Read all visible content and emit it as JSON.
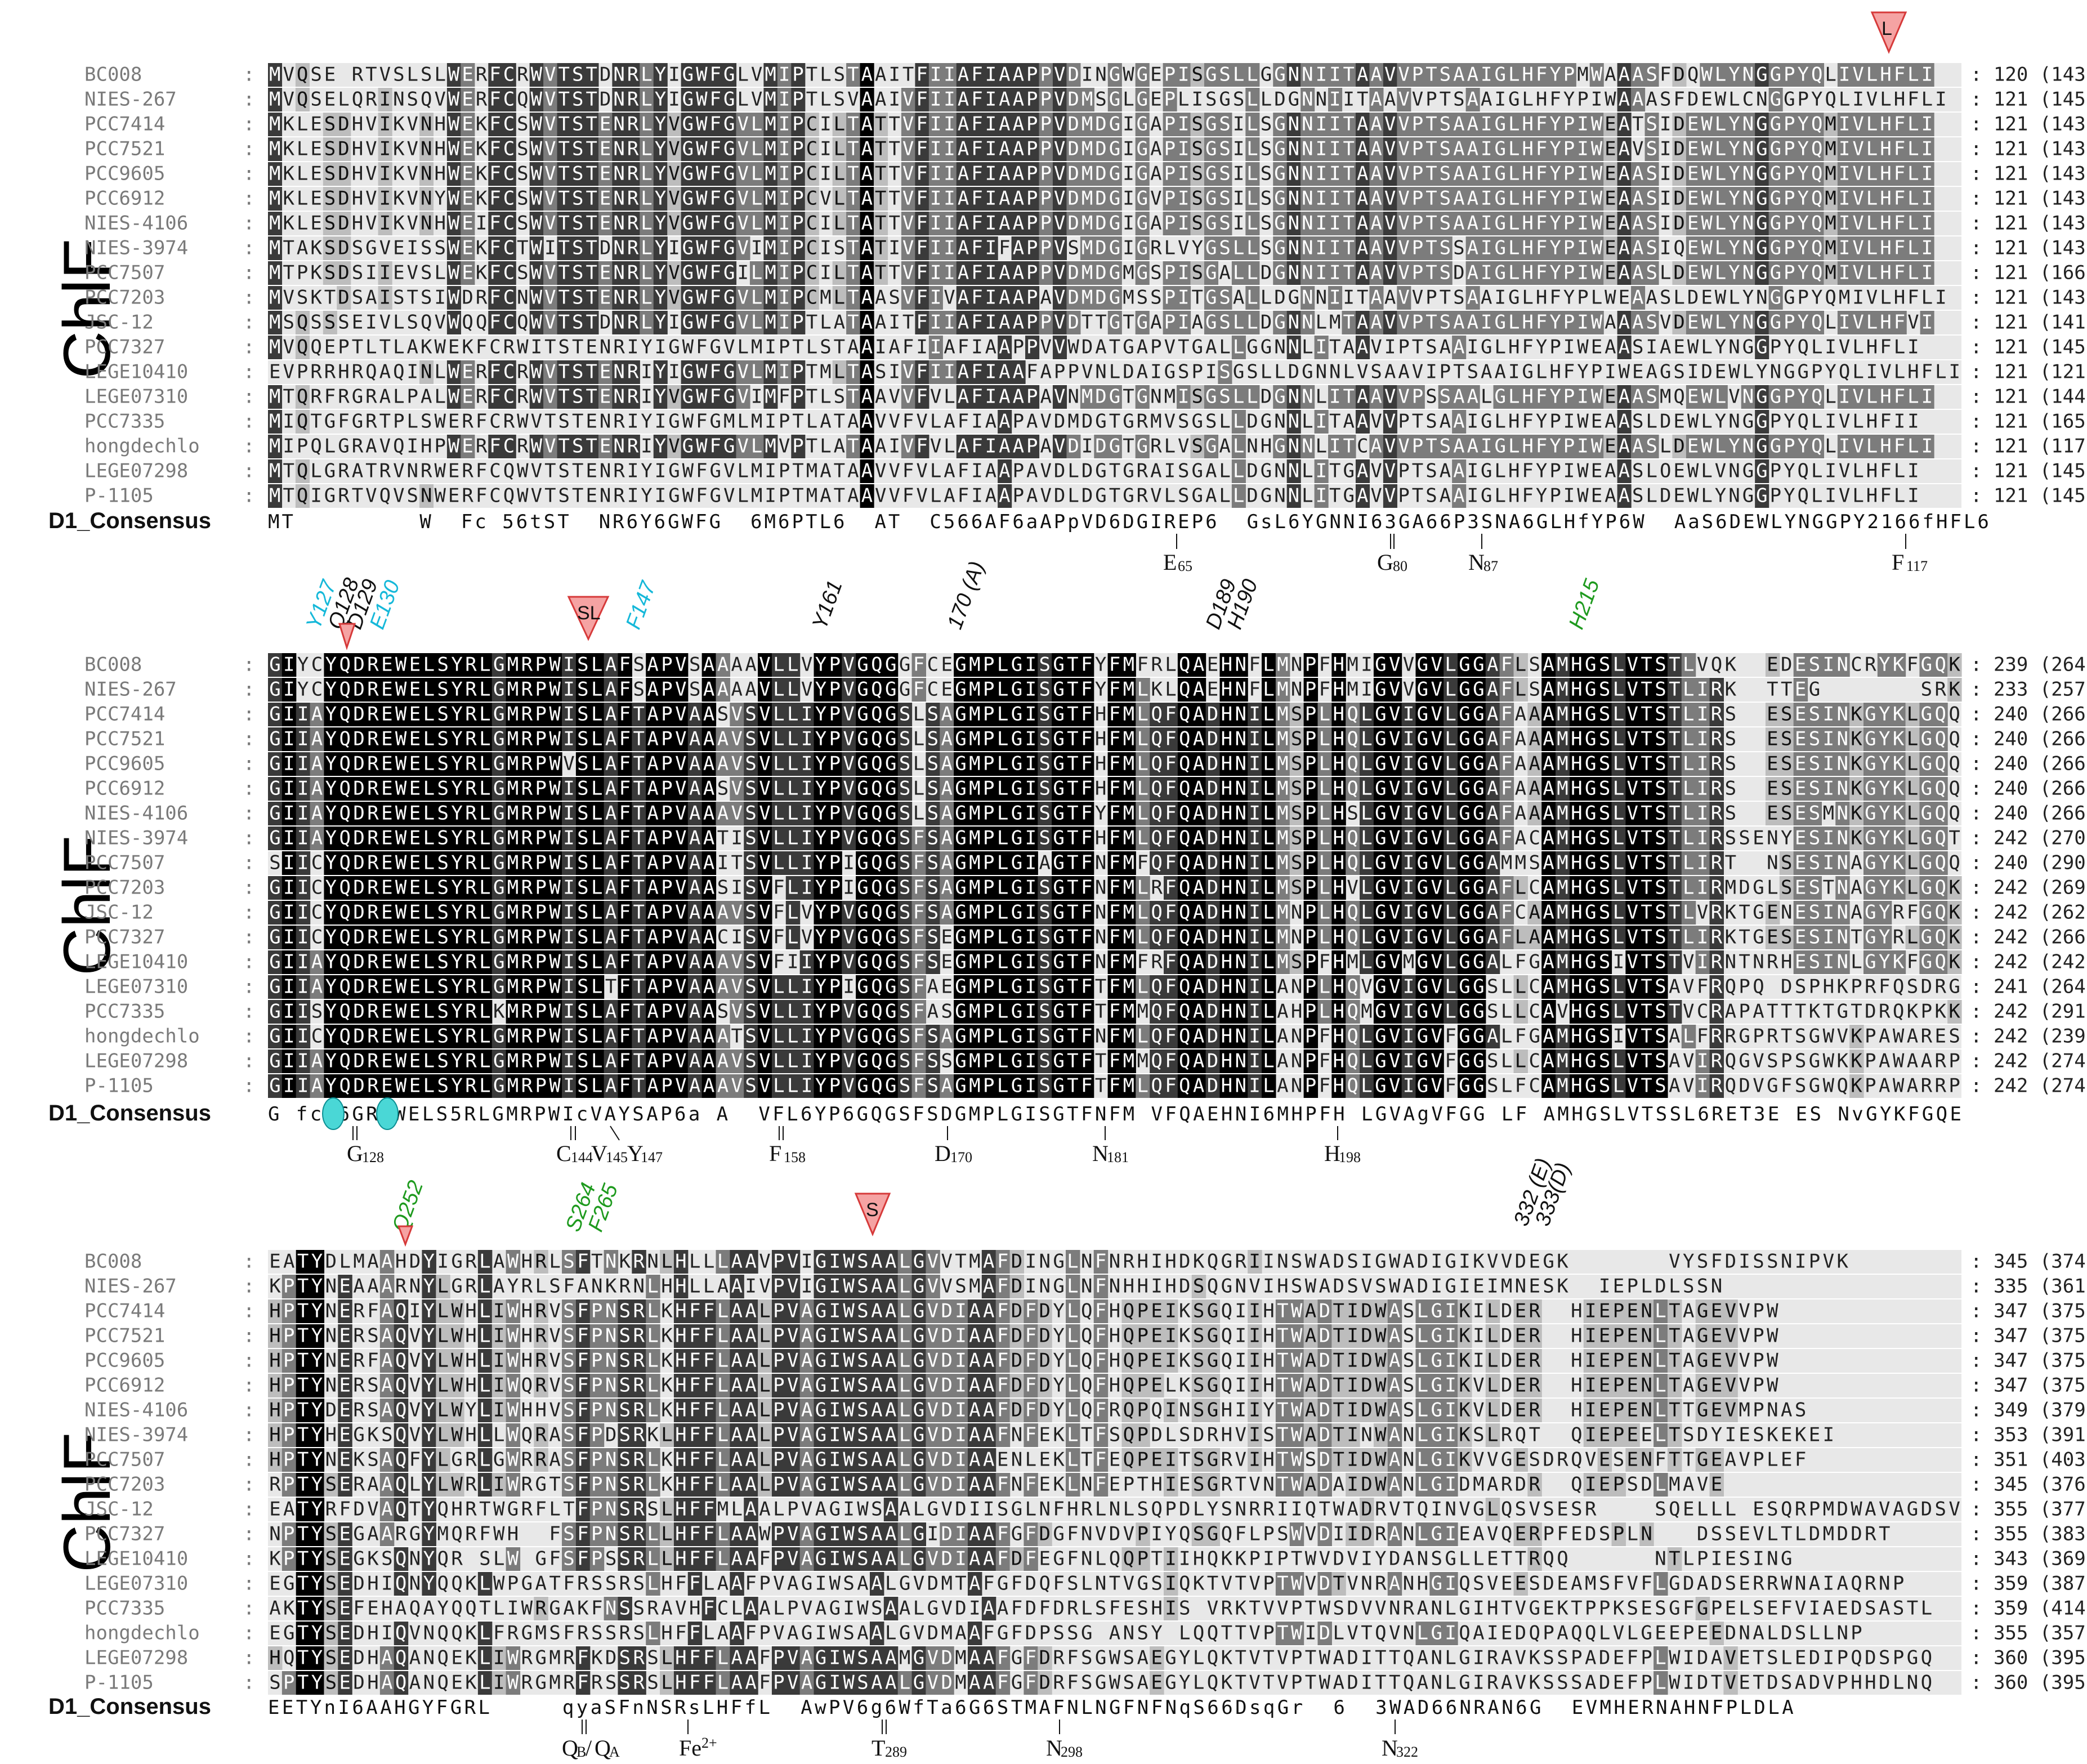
{
  "colors": {
    "black": "#000000",
    "dark": "#3a3a3a",
    "mid": "#7c7c7c",
    "light": "#bdbdbd",
    "pale": "#e8e8e8",
    "cyan_text": "#15b8d9",
    "green_text": "#1e9a1e",
    "triangle_fill": "#f5a3a3",
    "triangle_stroke": "#d63a3a",
    "ellipse_fill": "#4ad7d6"
  },
  "protein_label": "ChlF",
  "consensus_label": "D1_Consensus",
  "species": [
    "BC008",
    "NIES-267",
    "PCC7414",
    "PCC7521",
    "PCC9605",
    "PCC6912",
    "NIES-4106",
    "NIES-3974",
    "PCC7507",
    "PCC7203",
    "JSC-12",
    "PCC7327",
    "LEGE10410",
    "LEGE07310",
    "PCC7335",
    "hongdechlo",
    "LEGE07298",
    "P-1105"
  ],
  "blocks": [
    {
      "name": "block-1",
      "sequences": [
        "MVQSE-RTVSLSLWERFCRWVTSTDNRLYIGWFGLVMIPTLSTAAITFIIAFIAAPPVDINGWGEPISGSLLGGNNIITAAVVPTSAAIGLHFYPMWAAASFDQWLYNGGPYQLIVLHFLI",
        "MVQSELQRINSQVWERFCQWVTSTDNRLYIGWFGLVMIPTLSVAAIVFIIAFIAAPPVDMSGLGEPLISGSLLDGNNIITAAVVPTSAAIGLHFYPIWAAASFDEWLCNGGPYQLIVLHFLI",
        "MKLESDHVIKVNHWEKFCSWVTSTENRLYVGWFGVLMIPCILTATTVFIIAFIAAPPVDMDGIGAPISGSILSGNNIITAAVVPTSAAIGLHFYPIWEATSIDEWLYNGGPYQMIVLHFLI",
        "MKLESDHVIKVNHWEKFCSWVTSTENRLYVGWFGVLMIPCILTATTVFIIAFIAAPPVDMDGIGAPISGSILSGNNIITAAVVPTSAAIGLHFYPIWEAVSIDEWLYNGGPYQMIVLHFLI",
        "MKLESDHVIKVNHWEKFCSWVTSTENRLYVGWFGVLMIPCILTATTVFIIAFIAAPPVDMDGIGAPISGSILSGNNIITAAVVPTSAAIGLHFYPIWEAASIDEWLYNGGPYQMIVLHFLI",
        "MKLESDHVIKVNYWEKFCSWVTSTENRLYVGWFGVLMIPCVLTATTVFIIAFIAAPPVDMDGIGVPISGSILSGNNIITAAVVPTSAAIGLHFYPIWEAASIDEWLYNGGPYQMIVLHFLI",
        "MKLESDHVIKVNHWEIFCSWVTSTENRLYVGWFGVLMIPCILTATTVFIIAFIAAPPVDMDGIGAPISGSILSGNNIITAAVVPTSAAIGLHFYPIWEAASIDEWLYNGGPYQMIVLHFLI",
        "MTAKSDSGVEISSWEKFCTWITSTDNRLYIGWFGVIMIPCISTATIVFIIAFIFAPPVSMDGIGRLVYGSLLSGNNIITAAVVPTSSAIGLHFYPIWEAASIQEWLYNGGPYQMIVLHFLI",
        "MTPKSDSIIEVSLWEKFCSWVTSTENRLYVGWFGILMIPCILTATTVFIIAFIAAPPVDMDGMGSPISGALLDGNNIITAAVVPTSDAIGLHFYPIWEAASLDEWLYNGGPYQMIVLHFLI",
        "MVSKTDSAISTSIWDRFCNWVTSTENRLYVGWFGVLMIPCMLTAASVFIVAFIAAPAVDMDGMSSPITGSALLDGNNIITAAVVPTSAAIGLHFYPLWEAASLDEWLYNGGPYQMIVLHFLI",
        "MSQSSSEIVLSQVWQQFCQWVTSTDNRLYIGWFGVLMIPTLATAAITFIIAFIAAPPVDTTGTGAPIAGSLLDGNNLMTAAVVPTSAAIGLHFYPIWAAASVDEWLYNGGPYQLIVLHFVI",
        "MVQQEPTLTLAKWEKFCRWITSTENRIYIGWFGVLMIPTLSTAAIAFIIAFIAAPPVVWDATGAPVTGALLGGNNLITAAVIPTSAAIGLHFYPIWEAASIAEWLYNGGPYQLIVLHFLI",
        "EVPRRHRQAQINLWERFCRWVTSTENRIYIGWFGVLMIPTMLTASIVFIIAFIAAFAPPVNLDAIGSPISGSLLDGNNLVSAAVIPTSAAIGLHFYPIWEAGSIDEWLYNGGPYQLIVLHFLI",
        "MTQRFRGRALPALWERFCRWVTSTENRIYVGWFGVIMFPTLSTAAVVFVLAFIAAPAVNMDGTGNMISGSLLDGNNLITAAVVPSSAALGLHFYPIWEAASMQEWLVNGGPYQLIVLHFLI",
        "MIQTGFGRTPLSWERFCRWVTSTENRIYIGWFGMLMIPTLATAAVVFVLAFIAAPAVDMDGTGRMVSGSLLDGNNLITAAVVPTSAAIGLHFYPIWEAASLDEWLYNGGPYQLIVLHFII",
        "MIPQLGRAVQIHPWERFCRWVTSTENRIYVGWFGVLMVPTLATAAIVFVLAFIAAPAVDIDGTGRLVSGALNHGNNLITCAVVPTSAAIGLHFYPIWEAASLDEWLYNGGPYQLIVLHFLI",
        "MTQLGRATRVNRWERFCQWVTSTENRIYIGWFGVLMIPTMATAAVVFVLAFIAAPAVDLDGTGRAISGALLDGNNLITGAVVPTSAAIGLHFYPIWEAASLOEWLVNGGPYQLIVLHFLI",
        "MTQIGRTVQVSNWERFCQWVTSTENRIYIGWFGVLMIPTMATAAVVFVLAFIAAPAVDLDGTGRVLSGALLDGNNLITGAVVPTSAAIGLHFYPIWEAASLDEWLYNGGPYQLIVLHFLI"
      ],
      "counts": [
        "120 (143)",
        "121 (145)",
        "121 (143)",
        "121 (143)",
        "121 (143)",
        "121 (143)",
        "121 (143)",
        "121 (143)",
        "121 (166)",
        "121 (143)",
        "121 (141)",
        "121 (145)",
        "121 (121)",
        "121 (144)",
        "121 (165)",
        "121 (117)",
        "121 (145)",
        "121 (145)"
      ],
      "consensus": "MT         W  Fc 56tST  NR6Y6GWFG  6M6PTL6  AT  C566AF6aAPpVD6DGIREP6  GsL6YGNNI63GA66P3SNA6GLHfYP6W  AaS6DEWLYNGGPY2166fHFL6",
      "top_annotations": [
        {
          "text": "L",
          "type": "triangle"
        }
      ],
      "bottom_residues": [
        {
          "label": "E",
          "sub": "65"
        },
        {
          "label": "G",
          "sub": "80"
        },
        {
          "label": "N",
          "sub": "87"
        },
        {
          "label": "F",
          "sub": "117"
        }
      ]
    },
    {
      "name": "block-2",
      "sequences": [
        "GIYCYQDREWELSYRLGMRPWISLAFSAPVSAAAAVLLVYPVGQGGFCEGMPLGISGTFYFMFRLQAEHNFLMNPFHMIGVVGVLGGAFLSAMHGSLVTSTLVQK--EDESINCRYKFGQK",
        "GIYCYQDREWELSYRLGMRPWISLAFSAPVSAAAAVLLVYPVGQGGFCEGMPLGISGTFYFMLKLQAEHNFLMNPFHMIGVVGVLGGAFLSAMHGSLVTSTLIRK--TTEG-------SRK",
        "GIIAYQDREWELSYRLGMRPWISLAFTAPVAASVSVLLIYPVGQGSLSAGMPLGISGTFHFMLQFQADHNILMSPLHQLGVIGVLGGAFAAAMHGSLVTSTLIRS--ESESINKGYKLGQQ",
        "GIIAYQDREWELSYRLGMRPWISLAFTAPVAAAVSVLLIYPVGQGSLSAGMPLGISGTFHFMLQFQADHNILMSPLHQLGVIGVLGGAFAAAMHGSLVTSTLIRS--ESESINKGYKLGQQ",
        "GIIAYQDREWELSYRLGMRPWVSLAFTAPVAAAVSVLLIYPVGQGSLSAGMPLGISGTFHFMLQFQADHNILMSPLHQLGVIGVLGGAFAAAMHGSLVTSTLIRS--ESESINKGYKLGQQ",
        "GIIAYQDREWELSYRLGMRPWISLAFTAPVAASVSVLLIYPVGQGSLSAGMPLGISGTFHFMLQFQADHNILMSPLHQLGVIGVLGGAFAAAMHGSLVTSTLIRS--ESESINKGYKLGQQ",
        "GIIAYQDREWELSYRLGMRPWISLAFTAPVAAAVSVLLIYPVGQGSLSAGMPLGISGTFYFMLQFQADHNILMSPLHSLGVIGVLGGAFAAAMHGSLVTSTLIRS--ESESMNKGYKLGQQ",
        "GIIAYQDREWELSYRLGMRPWISLAFTAPVAATISVLLIYPVGQGSFSAGMPLGISGTFHFMLQFQADHNILMSPLHQLGVIGVLGGAFACAMHGSLVTSTLIRSSENYESINKGYKLGQT",
        "SIICYQDREWELSYRLGMRPWISLAFTAPVAAITSVLLIYPIGQGSFSAGMPLGIAGTFNFMFQFQADHNILMSPLHQLGVIGVLGGAMMSAMHGSLVTSTLIRT--NSESINAGYKLGQQ",
        "GIICYQDREWELSYRLGMRPWISLAFTAPVAASISVFLIYPIGQGSFSAGMPLGISGTFNFMLRFQADHNILMSPLHVLGVIGVLGGAFLCAMHGSLVTSTLIRMDGLSESTNAGYKLGQK",
        "GIICYQDREWELSYRLGMRPWISLAFTAPVAAAVSVFLVYPVGQGSFSAGMPLGISGTFNFMLQFQADHNILMNPLHQLGVIGVLGGAFCAAMHGSLVTSTLVRKTGENESINAGYRFGQK",
        "GIICYQDREWELSYRLGMRPWISLAFTAPVAACISVFLVYPVGQGSFSEGMPLGISGTFNFMLQFQADHNILMNPLHQLGVIGVLGGAFLAAMHGSLVTSTLIRKTGESESINTGYRLGQK",
        "GIIAYQDREWELSYRLGMRPWISLAFTAPVAAAVSVFIIYPVGQGSFSEGMPLGISGTFNFMFRFQADHNILMSPFHMLGVMGVLGGALFGAMHGSIVTSTVIRNTNRHESINLGYKFGQK",
        "GIIAYQDREWELSYRLGMRPWISLTFTAPVAAAVSVLLIYPIGQGSFAEGMPLGISGTFTFMLQFQADHNILANPLHQVGVIGVLGGSLLCAMHGSLVTSAVFRQPQ-DSPHKPRFQSDRG",
        "GIISYQDREWELSYRLKMRPWISLAFTAPVAASVSVLLIYPVGQGSFASGMPLGISGTFTFMMQFQADHNILAHPLHQMGVIGVLGGSLLCAVHGSLVTSTVCRAPATTTKTGTDRQKPKK",
        "GIICYQDREWELSYRLGMRPWISLAFTAPVAAATSVLLIYPVGQGSFSAGMPLGISGTFNFMLQFQADHNILANPFHQLGVIGVFGGALFGAMHGSIVTSALFRRGPRTSGWVKPAWARES",
        "GIIAYQDREWELSYRLGMRPWISLAFTAPVAAAVSVLLIYPVGQGSFSSGMPLGISGTFTFMMQFQADHNILANPFHQLGVIGVFGGSLLCAMHGSLVTSAVIRQGVSPSGWKKPAWAARP",
        "GIIAYQDREWELSYRLGMRPWISLAFTAPVAAAVSVLLIYPVGQGSFSAGMPLGISGTFTFMLQFQADHNILANPFHQLGVIGVFGGSLFCAMHGSLVTSAVIRQDVGFSGWQKPAWARRP"
      ],
      "counts": [
        "239 (264)",
        "233 (257)",
        "240 (266)",
        "240 (266)",
        "240 (266)",
        "240 (266)",
        "240 (266)",
        "242 (270)",
        "240 (290)",
        "242 (269)",
        "242 (262)",
        "242 (266)",
        "242 (242)",
        "241 (264)",
        "242 (291)",
        "242 (239)",
        "242 (274)",
        "242 (274)"
      ],
      "consensus": "G fcY6GR2WELS5RLGMRPWIcVAYSAP6a A  VFL6YP6GQGSFSDGMPLGISGTFNFM VFQAEHNI6MHPFH LGVAgVFGG LF AMHGSLVTSSL6RET3E ES NvGYKFGQE",
      "top_annotations": [
        {
          "text": "Y127",
          "color": "cyan"
        },
        {
          "text": "Q128",
          "color": "black"
        },
        {
          "text": "D129",
          "color": "black"
        },
        {
          "text": "E130",
          "color": "cyan"
        },
        {
          "text": "SL",
          "type": "triangle"
        },
        {
          "text": "F147",
          "color": "cyan"
        },
        {
          "text": "Y161",
          "color": "black"
        },
        {
          "text": "170 (A)",
          "color": "black"
        },
        {
          "text": "D189",
          "color": "black"
        },
        {
          "text": "H190",
          "color": "black"
        },
        {
          "text": "H215",
          "color": "green"
        }
      ],
      "bottom_residues": [
        {
          "label": "G",
          "sub": "128"
        },
        {
          "label": "C",
          "sub": "144"
        },
        {
          "label": "V",
          "sub": "145"
        },
        {
          "label": "Y",
          "sub": "147"
        },
        {
          "label": "F",
          "sub": "158"
        },
        {
          "label": "D",
          "sub": "170"
        },
        {
          "label": "N",
          "sub": "181"
        },
        {
          "label": "H",
          "sub": "198"
        }
      ]
    },
    {
      "name": "block-3",
      "sequences": [
        "EATYDLMAAHDYIGRLAWHRLSFTNKRNLHLLLAAVPVIGIWSAALGVVTMAFDINGLNFNRHIHDKQGRIINSWADSIGWADIGIKVVDEGK-------VYSFDISSNIPVK-----",
        "KPTYNEAAARNYLGRLAYRLSFANKRNLHHLLAAIVPVIGIWSAALGVVSMAFDINGLNFNHHIHDSQGNVIHSWADSVSWADIGIEIMNESK--IEPLDLSSN---------------",
        "HPTYNERFAQIYLWHLIWHRVSFPNSRLKHFFLAALPVAGIWSAALGVDIAAFDFDYLQFHQPEIKSGQIIHTWADTIDWASLGIKILDER--HIEPENLTAGEVVPW---------",
        "HPTYNERSAQVYLWHLIWHRVSFPNSRLKHFFLAALPVAGIWSAALGVDIAAFDFDYLQFHQPEIKSGQIIHTWADTIDWASLGIKILDER--HIEPENLTAGEVVPW---------",
        "HPTYNERFAQVYLWHLIWHRVSFPNSRLKHFFLAALPVAGIWSAALGVDIAAFDFDYLQFHQPEIKSGQIIHTWADTIDWASLGIKILDER--HIEPENLTAGEVVPW---------",
        "HPTYNERSAQVYLWHLIWQRVSFPNSRLKHFFLAALPVAGIWSAALGVDIAAFDFDYLQFHQPELKSGQIIHTWADTIDWASLGIKVLDER--HIEPENLTAGEVVPW---------",
        "HPTYDERSAQVYLWYLIWHHVSFPNSRLKHFFLAALPVAGIWSAALGVDIAAFDFDYLQFRQPQINSGHIIYTWADTIDWASLGIKVLDER--HIEPENLTTGEVMPNAS-------",
        "HPTYHEGKSQVYLWHLLWQRASFPDSRKLHFFLAALPVAGIWSAALGVDIAAFNFEKLTFSQPDLSDRHVISTWADTINWANLGIKSLRQT--QIEPEELTSDYIESKEKEI-----",
        "HPTYNEKSAQFYLGRLGWRRASFPNSRLKHFFLAALPVAGIWSAALGVDIAAENLEKLTFEQPEITSGRVIHTWSDTIDWANLGIKVVGESDRQVESENFTTGEAVPLEF-------",
        "RPTYSERAAQLYLWRLIWRGTSFPNSRLKHFFLAALPVAGIWSAALGVDIAAFNFEKLNFEPTHIESGRTVNTWADAIDWANLGIDMARDR--QIEPSDLMAVE-------------",
        "EATYRFDVAQTYQHRTWGRFLTFPNSRSLHFFMLAALPVAGIWSAALGVDIISGLNFHRLNLSQPDLYSNRRIIQTWADRVTQINVGLQSVSESR----SQELLL-ESQRPMDWAVAGDSV",
        "NPTYSEGAARGYMQRFWH--FSFPNSRLLHFFLAAWPVAGIWSAALGIDIAAFGFDGFNVDVPIYQSGQFLPSWVDIIDRANLGIEAVQERPFEDSPLN---DSSEVLTLDMDDRT",
        "KPTYSEGKSQNYQR-SLW-GFSFPSSRLLHFFLAAFPVAGIWSAALGVDIAAFDFEGFNLQQPTIIHQKKPIPTWVDVIYDANSGLLETTRQQ------NTLPIESING--------",
        "EGTYSEDHIQNYQQKLWPGATFRSSRSLHFFLAAFPVAGIWSAALGVDMTAFGFDQFSLNTVGSIQKTVTVPTWVDTVNRANHGIQSVEESDEAMSFVFLGDADSERRWNAIAQRNP",
        "AKTYSEFEHAQAYQQTLIWRGAKFNSSRAVHFCLAALPVAGIWSAALGVDIAAFDFDRLSFESHIS-VRKTVVPTWSDVVNRANLGIHTVGEKTPPKSESGFGPELSEFVIAEDSASTL",
        "EGTYSEDHIQVNQQKLFRGMSFRSSRSLHFFLAAFPVAGIWSAALGVDMAAFGFDPSSG-ANSY-LQQTTVPTWIDLVTQVNLGIQAIEDQPAQQLVLGEEPEEDNALDSLLNP---",
        "HQTYSEDHAQANQEKLIWRGMRFKDSRSLHFFLAAFPVAGIWSAAMGVDMAAFGFDRFSGWSAEGYLQKTVTVPTWADITTQANLGIRAVKSSPADEFPLWIDAVETSLEDIPQDSPGQ",
        "SPTYSEDHAQANQEKLIWRGMRFRSSRSLHFFLAAFPVAGIWSAALGVDMAAFGFDRFSGWSAEGYLQKTVTVPTWADITTQANLGIRAVKSSSADEFPLWIDTVETDSADVPHHDLNQ"
      ],
      "counts": [
        "345 (374)",
        "335 (361)",
        "347 (375)",
        "347 (375)",
        "347 (375)",
        "347 (375)",
        "349 (379)",
        "353 (391)",
        "351 (403)",
        "345 (376)",
        "355 (377)",
        "355 (383)",
        "343 (369)",
        "359 (387)",
        "359 (414)",
        "355 (357)",
        "360 (395)",
        "360 (395)"
      ],
      "consensus": "EETYnI6AAHGYFGRL     qyaSFnNSRsLHFfL  AwPV6g6WfTa6G6STMAFNLNGFNFNqS66DsqGr  6  3WAD66NRAN6G  EVMHERNAHNFPLDLA",
      "top_annotations": [
        {
          "text": "Q252",
          "color": "green"
        },
        {
          "text": "S264",
          "color": "green"
        },
        {
          "text": "F265",
          "color": "green"
        },
        {
          "text": "S",
          "type": "triangle"
        },
        {
          "text": "332 (E)",
          "color": "black"
        },
        {
          "text": "333(D)",
          "color": "black"
        }
      ],
      "bottom_residues": [
        {
          "label": "Q",
          "sub": "B"
        },
        {
          "label": "Q",
          "sub": "A"
        },
        {
          "label": "Fe",
          "sub": "2+"
        },
        {
          "label": "T",
          "sub": "289"
        },
        {
          "label": "N",
          "sub": "298"
        },
        {
          "label": "N",
          "sub": "322"
        }
      ]
    }
  ]
}
